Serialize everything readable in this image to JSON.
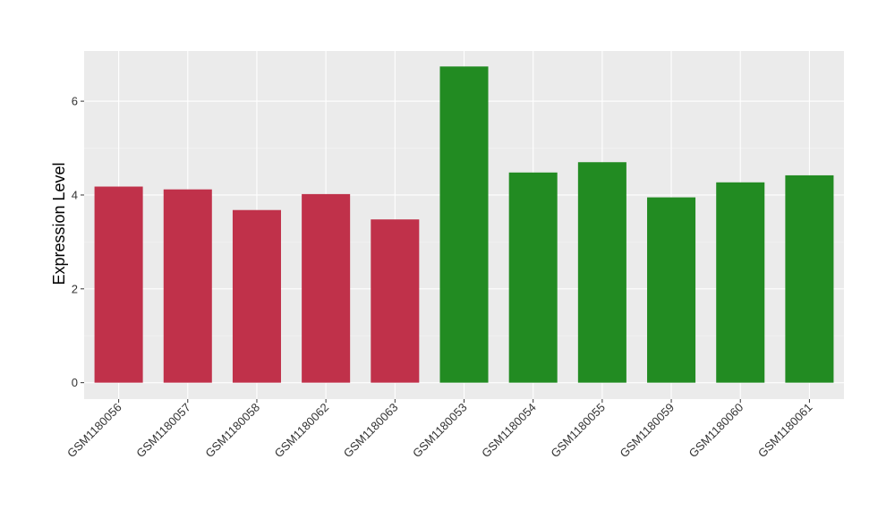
{
  "chart_data": {
    "type": "bar",
    "title": "",
    "xlabel": "",
    "ylabel": "Expression Level",
    "categories": [
      "GSM1180056",
      "GSM1180057",
      "GSM1180058",
      "GSM1180062",
      "GSM1180063",
      "GSM1180053",
      "GSM1180054",
      "GSM1180055",
      "GSM1180059",
      "GSM1180060",
      "GSM1180061"
    ],
    "values": [
      4.18,
      4.12,
      3.68,
      4.02,
      3.48,
      6.74,
      4.48,
      4.7,
      3.95,
      4.27,
      4.42
    ],
    "bar_colors": [
      "#c0314a",
      "#c0314a",
      "#c0314a",
      "#c0314a",
      "#c0314a",
      "#228b22",
      "#228b22",
      "#228b22",
      "#228b22",
      "#228b22",
      "#228b22"
    ],
    "yticks": [
      0,
      2,
      4,
      6
    ],
    "ylim": [
      -0.35,
      7.07
    ],
    "grid": true,
    "legend": "none",
    "colors": {
      "panel": "#ebebeb",
      "grid_major": "#ffffff",
      "grid_minor": "#f5f5f5"
    }
  }
}
